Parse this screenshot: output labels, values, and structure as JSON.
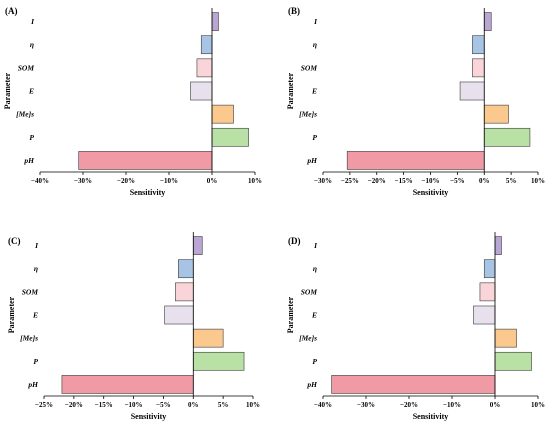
{
  "chart_data": [
    {
      "panel": "(A)",
      "type": "bar",
      "orientation": "horizontal",
      "xlabel": "Sensitivity",
      "ylabel": "Parameter",
      "categories": [
        "I",
        "η",
        "SOM",
        "E",
        "[Me]s",
        "P",
        "pH"
      ],
      "values": [
        1.5,
        -2.5,
        -3.5,
        -5,
        5,
        8.5,
        -31
      ],
      "xlim": [
        -40,
        10
      ],
      "xticks": [
        -40,
        -30,
        -20,
        -10,
        0,
        10
      ],
      "xtick_labels": [
        "−40%",
        "−30%",
        "−20%",
        "−10%",
        "0%",
        "10%"
      ],
      "colors": [
        "#b9a6d4",
        "#a7c4e4",
        "#f9d4d8",
        "#e8e0ec",
        "#fbc98e",
        "#b9e0a5",
        "#ef9aa4"
      ]
    },
    {
      "panel": "(B)",
      "type": "bar",
      "orientation": "horizontal",
      "xlabel": "Sensitivity",
      "ylabel": "Parameter",
      "categories": [
        "I",
        "η",
        "SOM",
        "E",
        "[Me]s",
        "P",
        "pH"
      ],
      "values": [
        1.3,
        -2.2,
        -2.2,
        -4.5,
        4.5,
        8.5,
        -25.5
      ],
      "xlim": [
        -30,
        10
      ],
      "xticks": [
        -30,
        -25,
        -20,
        -15,
        -10,
        -5,
        0,
        5,
        10
      ],
      "xtick_labels": [
        "−30%",
        "−25%",
        "−20%",
        "−15%",
        "−10%",
        "−5%",
        "0%",
        "5%",
        "10%"
      ],
      "colors": [
        "#b9a6d4",
        "#a7c4e4",
        "#f9d4d8",
        "#e8e0ec",
        "#fbc98e",
        "#b9e0a5",
        "#ef9aa4"
      ]
    },
    {
      "panel": "(C)",
      "type": "bar",
      "orientation": "horizontal",
      "xlabel": "Sensitivity",
      "ylabel": "Parameter",
      "categories": [
        "I",
        "η",
        "SOM",
        "E",
        "[Me]s",
        "P",
        "pH"
      ],
      "values": [
        1.5,
        -2.5,
        -3,
        -4.8,
        5,
        8.5,
        -22
      ],
      "xlim": [
        -25,
        10
      ],
      "xticks": [
        -25,
        -20,
        -15,
        -10,
        -5,
        0,
        5,
        10
      ],
      "xtick_labels": [
        "−25%",
        "−20%",
        "−15%",
        "−10%",
        "−5%",
        "0%",
        "5%",
        "10%"
      ],
      "colors": [
        "#b9a6d4",
        "#a7c4e4",
        "#f9d4d8",
        "#e8e0ec",
        "#fbc98e",
        "#b9e0a5",
        "#ef9aa4"
      ]
    },
    {
      "panel": "(D)",
      "type": "bar",
      "orientation": "horizontal",
      "xlabel": "Sensitivity",
      "ylabel": "Parameter",
      "categories": [
        "I",
        "η",
        "SOM",
        "E",
        "[Me]s",
        "P",
        "pH"
      ],
      "values": [
        1.5,
        -2.5,
        -3.5,
        -5,
        5,
        8.5,
        -38
      ],
      "xlim": [
        -40,
        10
      ],
      "xticks": [
        -40,
        -30,
        -20,
        -10,
        0,
        10
      ],
      "xtick_labels": [
        "−40%",
        "−30%",
        "−20%",
        "−10%",
        "0%",
        "10%"
      ],
      "colors": [
        "#b9a6d4",
        "#a7c4e4",
        "#f9d4d8",
        "#e8e0ec",
        "#fbc98e",
        "#b9e0a5",
        "#ef9aa4"
      ]
    }
  ]
}
